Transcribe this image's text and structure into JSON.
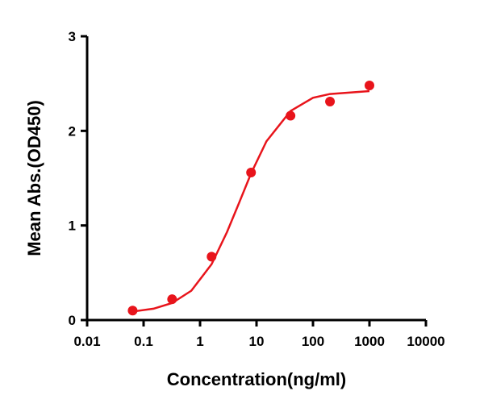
{
  "chart_data": {
    "type": "scatter",
    "xlabel": "Concentration(ng/ml)",
    "ylabel": "Mean Abs.(OD450)",
    "x_scale": "log",
    "color": "#e8141b",
    "x": [
      0.064,
      0.32,
      1.6,
      8,
      40,
      200,
      1000
    ],
    "values": [
      0.1,
      0.22,
      0.67,
      1.56,
      2.16,
      2.31,
      2.48
    ],
    "curve": {
      "x": [
        0.064,
        0.15,
        0.32,
        0.7,
        1.6,
        3,
        5,
        8,
        15,
        40,
        100,
        200,
        1000
      ],
      "values": [
        0.09,
        0.12,
        0.18,
        0.31,
        0.59,
        0.93,
        1.25,
        1.55,
        1.89,
        2.21,
        2.35,
        2.39,
        2.42
      ]
    },
    "xlim": [
      0.01,
      10000
    ],
    "xticks": [
      0.01,
      0.1,
      1,
      10,
      100,
      1000,
      10000
    ],
    "ylim": [
      0,
      3
    ],
    "yticks": [
      0,
      1,
      2,
      3
    ]
  }
}
